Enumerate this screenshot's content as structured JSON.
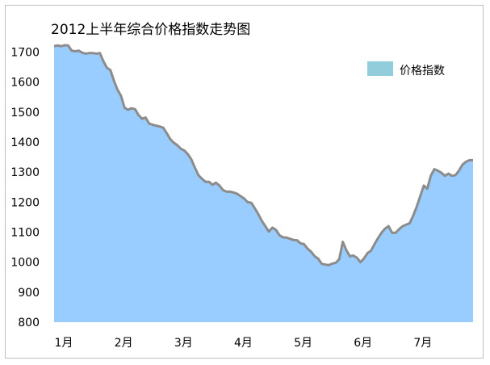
{
  "chart_data": {
    "type": "area",
    "title": "2012上半年综合价格指数走势图",
    "xlabel": "",
    "ylabel": "",
    "ylim": [
      800,
      1750
    ],
    "y_ticks": [
      800,
      900,
      1000,
      1100,
      1200,
      1300,
      1400,
      1500,
      1600,
      1700
    ],
    "x_ticks": [
      "1月",
      "2月",
      "3月",
      "4月",
      "5月",
      "6月",
      "7月"
    ],
    "grid": false,
    "legend_position": "top-right",
    "colors": {
      "fill": "#99ccff",
      "line": "#8c8c8c",
      "legend_swatch": "#92cddc"
    },
    "series": [
      {
        "name": "价格指数",
        "values": [
          1720,
          1722,
          1720,
          1723,
          1722,
          1705,
          1703,
          1705,
          1698,
          1695,
          1697,
          1697,
          1695,
          1697,
          1670,
          1648,
          1640,
          1605,
          1575,
          1555,
          1515,
          1508,
          1513,
          1510,
          1490,
          1478,
          1482,
          1462,
          1458,
          1455,
          1452,
          1448,
          1430,
          1410,
          1398,
          1390,
          1378,
          1372,
          1360,
          1342,
          1315,
          1290,
          1278,
          1268,
          1268,
          1258,
          1265,
          1255,
          1240,
          1235,
          1235,
          1232,
          1228,
          1220,
          1212,
          1200,
          1198,
          1180,
          1160,
          1138,
          1120,
          1102,
          1115,
          1108,
          1090,
          1083,
          1082,
          1078,
          1074,
          1073,
          1063,
          1060,
          1045,
          1035,
          1020,
          1012,
          995,
          992,
          990,
          995,
          998,
          1010,
          1068,
          1040,
          1020,
          1022,
          1015,
          1000,
          1012,
          1030,
          1038,
          1060,
          1080,
          1098,
          1112,
          1120,
          1098,
          1098,
          1110,
          1120,
          1125,
          1130,
          1155,
          1185,
          1220,
          1255,
          1245,
          1288,
          1310,
          1305,
          1298,
          1288,
          1295,
          1288,
          1290,
          1305,
          1325,
          1335,
          1340,
          1340
        ]
      }
    ],
    "month_start_index": [
      0,
      17,
      34,
      51,
      68,
      85,
      102
    ]
  }
}
